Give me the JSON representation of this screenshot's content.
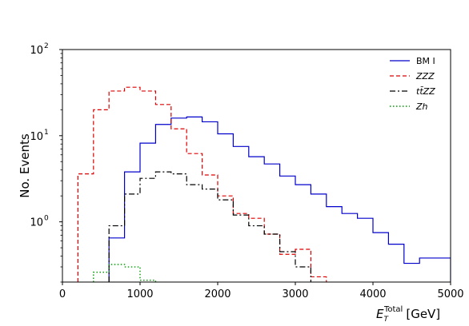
{
  "chart_data": {
    "type": "line",
    "step": true,
    "xlabel": "E",
    "xlabel_sup": "Total",
    "xlabel_sub": "T",
    "xlabel_unit": "[GeV]",
    "ylabel": "No. Events",
    "xlim": [
      0,
      5000
    ],
    "ylim": [
      0.2,
      100
    ],
    "yscale": "log",
    "xticks": [
      "0",
      "1000",
      "2000",
      "3000",
      "4000",
      "5000"
    ],
    "yticks": [
      {
        "value": 1,
        "base": "10",
        "exp": "0"
      },
      {
        "value": 10,
        "base": "10",
        "exp": "1"
      },
      {
        "value": 100,
        "base": "10",
        "exp": "2"
      }
    ],
    "grid": false,
    "legend_position": "top-right",
    "series": [
      {
        "name": "BM I",
        "color": "#0000cc",
        "dash": "solid",
        "edges": [
          600,
          800,
          1000,
          1200,
          1400,
          1600,
          1800,
          2000,
          2200,
          2400,
          2600,
          2800,
          3000,
          3200,
          3400,
          3600,
          3800,
          4000,
          4200,
          4400,
          4600,
          5000
        ],
        "values": [
          0.65,
          3.8,
          8.2,
          13.5,
          16.0,
          16.5,
          14.5,
          10.5,
          7.5,
          5.7,
          4.7,
          3.4,
          2.7,
          2.1,
          1.5,
          1.25,
          1.1,
          0.75,
          0.55,
          0.33,
          0.38
        ]
      },
      {
        "name": "ZZZ",
        "color": "#dd0000",
        "dash": "dashed",
        "edges": [
          200,
          400,
          600,
          800,
          1000,
          1200,
          1400,
          1600,
          1800,
          2000,
          2200,
          2400,
          2600,
          2800,
          3000,
          3200,
          3400
        ],
        "values": [
          3.6,
          20.0,
          33.0,
          36.5,
          33.0,
          23.0,
          12.0,
          6.2,
          3.5,
          2.0,
          1.25,
          1.1,
          0.72,
          0.42,
          0.48,
          0.23
        ]
      },
      {
        "name": "ttZZ",
        "color": "#000000",
        "dash": "dashdot",
        "edges": [
          600,
          800,
          1000,
          1200,
          1400,
          1600,
          1800,
          2000,
          2200,
          2400,
          2600,
          2800,
          3000,
          3200
        ],
        "values": [
          0.9,
          2.1,
          3.2,
          3.8,
          3.6,
          2.7,
          2.4,
          1.8,
          1.2,
          0.9,
          0.72,
          0.45,
          0.3
        ]
      },
      {
        "name": "Zh",
        "color": "#009900",
        "dash": "dotted",
        "edges": [
          400,
          600,
          800,
          1000,
          1200
        ],
        "values": [
          0.26,
          0.32,
          0.3,
          0.21
        ]
      }
    ]
  },
  "legend": {
    "items": [
      {
        "key": "bm1",
        "label": "BM I"
      },
      {
        "key": "zzz",
        "label": "ZZZ"
      },
      {
        "key": "ttzz",
        "label": "tt̄ZZ"
      },
      {
        "key": "zh",
        "label": "Zh"
      }
    ]
  }
}
